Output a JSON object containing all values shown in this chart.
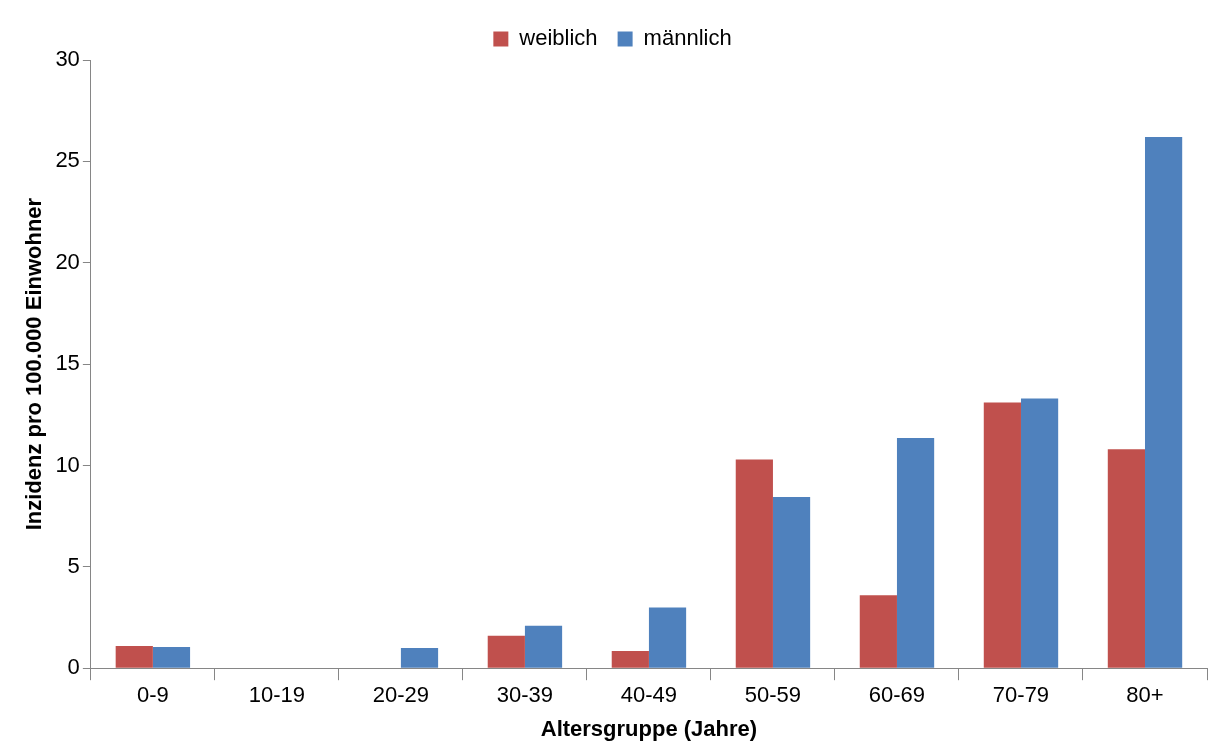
{
  "chart_data": {
    "type": "bar",
    "xlabel": "Altersgruppe (Jahre)",
    "ylabel": "Inzidenz pro 100.000 Einwohner",
    "categories": [
      "0-9",
      "10-19",
      "20-29",
      "30-39",
      "40-49",
      "50-59",
      "60-69",
      "70-79",
      "80+"
    ],
    "series": [
      {
        "name": "weiblich",
        "color": "#c0504d",
        "values": [
          1.1,
          0,
          0,
          1.6,
          0.85,
          10.3,
          3.6,
          13.1,
          10.8
        ]
      },
      {
        "name": "männlich",
        "color": "#4f81bd",
        "values": [
          1.05,
          0,
          1.0,
          2.1,
          3.0,
          8.45,
          11.35,
          13.3,
          26.2
        ]
      }
    ],
    "ylim": [
      0,
      30
    ],
    "yticks": [
      0,
      5,
      10,
      15,
      20,
      25,
      30
    ],
    "grid": false,
    "legend": "top"
  }
}
